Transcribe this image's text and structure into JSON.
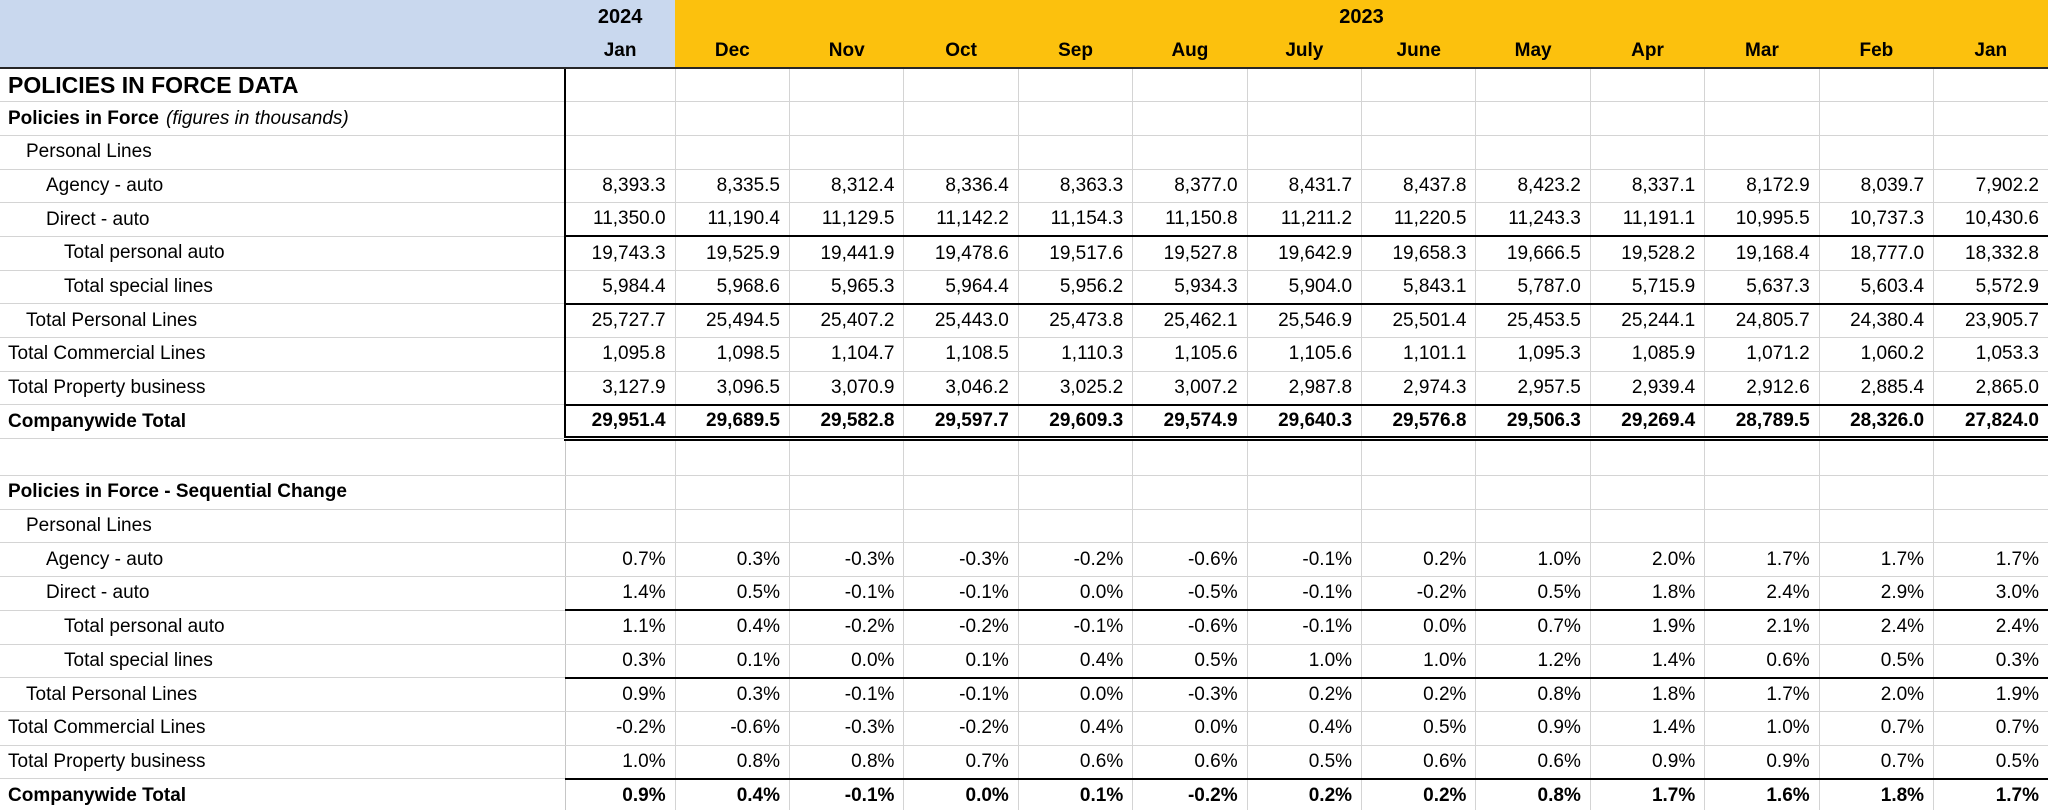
{
  "page_title": "POLICIES IN FORCE DATA",
  "colors": {
    "header_2024_bg": "#c9d8ee",
    "header_2023_bg": "#fcc10d",
    "gridline": "#d4d4d4",
    "strong_border": "#262626"
  },
  "header": {
    "year_2024": "2024",
    "year_2023": "2023",
    "months": [
      "Jan",
      "Dec",
      "Nov",
      "Oct",
      "Sep",
      "Aug",
      "July",
      "June",
      "May",
      "Apr",
      "Mar",
      "Feb",
      "Jan"
    ]
  },
  "sections": [
    {
      "heading": "Policies in Force",
      "note": "(figures in thousands)",
      "rows": [
        {
          "label": "Personal Lines",
          "indent": 1,
          "bold": false,
          "border": "none",
          "values": []
        },
        {
          "label": "Agency - auto",
          "indent": 2,
          "bold": false,
          "border": "none",
          "values": [
            "8,393.3",
            "8,335.5",
            "8,312.4",
            "8,336.4",
            "8,363.3",
            "8,377.0",
            "8,431.7",
            "8,437.8",
            "8,423.2",
            "8,337.1",
            "8,172.9",
            "8,039.7",
            "7,902.2"
          ]
        },
        {
          "label": "Direct - auto",
          "indent": 2,
          "bold": false,
          "border": "single",
          "values": [
            "11,350.0",
            "11,190.4",
            "11,129.5",
            "11,142.2",
            "11,154.3",
            "11,150.8",
            "11,211.2",
            "11,220.5",
            "11,243.3",
            "11,191.1",
            "10,995.5",
            "10,737.3",
            "10,430.6"
          ]
        },
        {
          "label": "Total personal auto",
          "indent": 3,
          "bold": false,
          "border": "none",
          "values": [
            "19,743.3",
            "19,525.9",
            "19,441.9",
            "19,478.6",
            "19,517.6",
            "19,527.8",
            "19,642.9",
            "19,658.3",
            "19,666.5",
            "19,528.2",
            "19,168.4",
            "18,777.0",
            "18,332.8"
          ]
        },
        {
          "label": "Total special lines",
          "indent": 3,
          "bold": false,
          "border": "single",
          "values": [
            "5,984.4",
            "5,968.6",
            "5,965.3",
            "5,964.4",
            "5,956.2",
            "5,934.3",
            "5,904.0",
            "5,843.1",
            "5,787.0",
            "5,715.9",
            "5,637.3",
            "5,603.4",
            "5,572.9"
          ]
        },
        {
          "label": "Total Personal Lines",
          "indent": 1,
          "bold": false,
          "border": "none",
          "values": [
            "25,727.7",
            "25,494.5",
            "25,407.2",
            "25,443.0",
            "25,473.8",
            "25,462.1",
            "25,546.9",
            "25,501.4",
            "25,453.5",
            "25,244.1",
            "24,805.7",
            "24,380.4",
            "23,905.7"
          ]
        },
        {
          "label": "Total Commercial Lines",
          "indent": 0,
          "bold": false,
          "border": "none",
          "values": [
            "1,095.8",
            "1,098.5",
            "1,104.7",
            "1,108.5",
            "1,110.3",
            "1,105.6",
            "1,105.6",
            "1,101.1",
            "1,095.3",
            "1,085.9",
            "1,071.2",
            "1,060.2",
            "1,053.3"
          ]
        },
        {
          "label": "Total Property business",
          "indent": 0,
          "bold": false,
          "border": "single",
          "values": [
            "3,127.9",
            "3,096.5",
            "3,070.9",
            "3,046.2",
            "3,025.2",
            "3,007.2",
            "2,987.8",
            "2,974.3",
            "2,957.5",
            "2,939.4",
            "2,912.6",
            "2,885.4",
            "2,865.0"
          ]
        },
        {
          "label": "Companywide Total",
          "indent": 0,
          "bold": true,
          "border": "double",
          "values": [
            "29,951.4",
            "29,689.5",
            "29,582.8",
            "29,597.7",
            "29,609.3",
            "29,574.9",
            "29,640.3",
            "29,576.8",
            "29,506.3",
            "29,269.4",
            "28,789.5",
            "28,326.0",
            "27,824.0"
          ]
        }
      ]
    },
    {
      "heading": "Policies in Force - Sequential Change",
      "note": "",
      "rows": [
        {
          "label": "Personal Lines",
          "indent": 1,
          "bold": false,
          "border": "none",
          "values": []
        },
        {
          "label": "Agency - auto",
          "indent": 2,
          "bold": false,
          "border": "none",
          "values": [
            "0.7%",
            "0.3%",
            "-0.3%",
            "-0.3%",
            "-0.2%",
            "-0.6%",
            "-0.1%",
            "0.2%",
            "1.0%",
            "2.0%",
            "1.7%",
            "1.7%",
            "1.7%"
          ]
        },
        {
          "label": "Direct - auto",
          "indent": 2,
          "bold": false,
          "border": "single",
          "values": [
            "1.4%",
            "0.5%",
            "-0.1%",
            "-0.1%",
            "0.0%",
            "-0.5%",
            "-0.1%",
            "-0.2%",
            "0.5%",
            "1.8%",
            "2.4%",
            "2.9%",
            "3.0%"
          ]
        },
        {
          "label": "Total personal auto",
          "indent": 3,
          "bold": false,
          "border": "none",
          "values": [
            "1.1%",
            "0.4%",
            "-0.2%",
            "-0.2%",
            "-0.1%",
            "-0.6%",
            "-0.1%",
            "0.0%",
            "0.7%",
            "1.9%",
            "2.1%",
            "2.4%",
            "2.4%"
          ]
        },
        {
          "label": "Total special lines",
          "indent": 3,
          "bold": false,
          "border": "single",
          "values": [
            "0.3%",
            "0.1%",
            "0.0%",
            "0.1%",
            "0.4%",
            "0.5%",
            "1.0%",
            "1.0%",
            "1.2%",
            "1.4%",
            "0.6%",
            "0.5%",
            "0.3%"
          ]
        },
        {
          "label": "Total Personal Lines",
          "indent": 1,
          "bold": false,
          "border": "none",
          "values": [
            "0.9%",
            "0.3%",
            "-0.1%",
            "-0.1%",
            "0.0%",
            "-0.3%",
            "0.2%",
            "0.2%",
            "0.8%",
            "1.8%",
            "1.7%",
            "2.0%",
            "1.9%"
          ]
        },
        {
          "label": "Total Commercial Lines",
          "indent": 0,
          "bold": false,
          "border": "none",
          "values": [
            "-0.2%",
            "-0.6%",
            "-0.3%",
            "-0.2%",
            "0.4%",
            "0.0%",
            "0.4%",
            "0.5%",
            "0.9%",
            "1.4%",
            "1.0%",
            "0.7%",
            "0.7%"
          ]
        },
        {
          "label": "Total Property business",
          "indent": 0,
          "bold": false,
          "border": "single",
          "values": [
            "1.0%",
            "0.8%",
            "0.8%",
            "0.7%",
            "0.6%",
            "0.6%",
            "0.5%",
            "0.6%",
            "0.6%",
            "0.9%",
            "0.9%",
            "0.7%",
            "0.5%"
          ]
        },
        {
          "label": "Companywide Total",
          "indent": 0,
          "bold": true,
          "border": "none",
          "values": [
            "0.9%",
            "0.4%",
            "-0.1%",
            "0.0%",
            "0.1%",
            "-0.2%",
            "0.2%",
            "0.2%",
            "0.8%",
            "1.7%",
            "1.6%",
            "1.8%",
            "1.7%"
          ]
        }
      ]
    }
  ]
}
